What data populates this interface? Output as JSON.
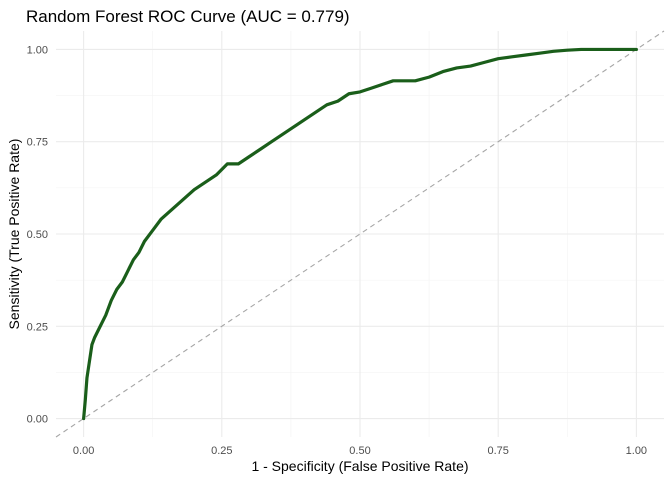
{
  "chart_data": {
    "type": "line",
    "title": "Random Forest ROC Curve (AUC = 0.779)",
    "xlabel": "1 - Specificity (False Positive Rate)",
    "ylabel": "Sensitivity (True Positive Rate)",
    "xlim": [
      -0.05,
      1.05
    ],
    "ylim": [
      -0.05,
      1.05
    ],
    "x_ticks": [
      0.0,
      0.25,
      0.5,
      0.75,
      1.0
    ],
    "y_ticks": [
      0.0,
      0.25,
      0.5,
      0.75,
      1.0
    ],
    "x_tick_labels": [
      "0.00",
      "0.25",
      "0.50",
      "0.75",
      "1.00"
    ],
    "y_tick_labels": [
      "0.00",
      "0.25",
      "0.50",
      "0.75",
      "1.00"
    ],
    "grid": true,
    "series": [
      {
        "color": "#1a5e1a",
        "x": [
          0.0,
          0.003,
          0.006,
          0.01,
          0.015,
          0.02,
          0.03,
          0.04,
          0.05,
          0.06,
          0.07,
          0.08,
          0.09,
          0.1,
          0.11,
          0.125,
          0.14,
          0.155,
          0.17,
          0.185,
          0.2,
          0.22,
          0.24,
          0.26,
          0.28,
          0.3,
          0.32,
          0.34,
          0.36,
          0.38,
          0.4,
          0.42,
          0.44,
          0.46,
          0.48,
          0.5,
          0.52,
          0.54,
          0.56,
          0.58,
          0.6,
          0.625,
          0.65,
          0.675,
          0.7,
          0.725,
          0.75,
          0.775,
          0.8,
          0.825,
          0.85,
          0.875,
          0.9,
          0.95,
          1.0
        ],
        "y": [
          0.0,
          0.05,
          0.11,
          0.15,
          0.2,
          0.22,
          0.25,
          0.28,
          0.32,
          0.35,
          0.37,
          0.4,
          0.43,
          0.45,
          0.48,
          0.51,
          0.54,
          0.56,
          0.58,
          0.6,
          0.62,
          0.64,
          0.66,
          0.69,
          0.69,
          0.71,
          0.73,
          0.75,
          0.77,
          0.79,
          0.81,
          0.83,
          0.85,
          0.86,
          0.88,
          0.885,
          0.895,
          0.905,
          0.915,
          0.915,
          0.915,
          0.925,
          0.94,
          0.95,
          0.955,
          0.965,
          0.975,
          0.98,
          0.985,
          0.99,
          0.995,
          0.998,
          1.0,
          1.0,
          1.0
        ]
      },
      {
        "color": "#a6a6a6",
        "x": [
          -0.05,
          1.05
        ],
        "y": [
          -0.05,
          1.05
        ]
      }
    ]
  }
}
